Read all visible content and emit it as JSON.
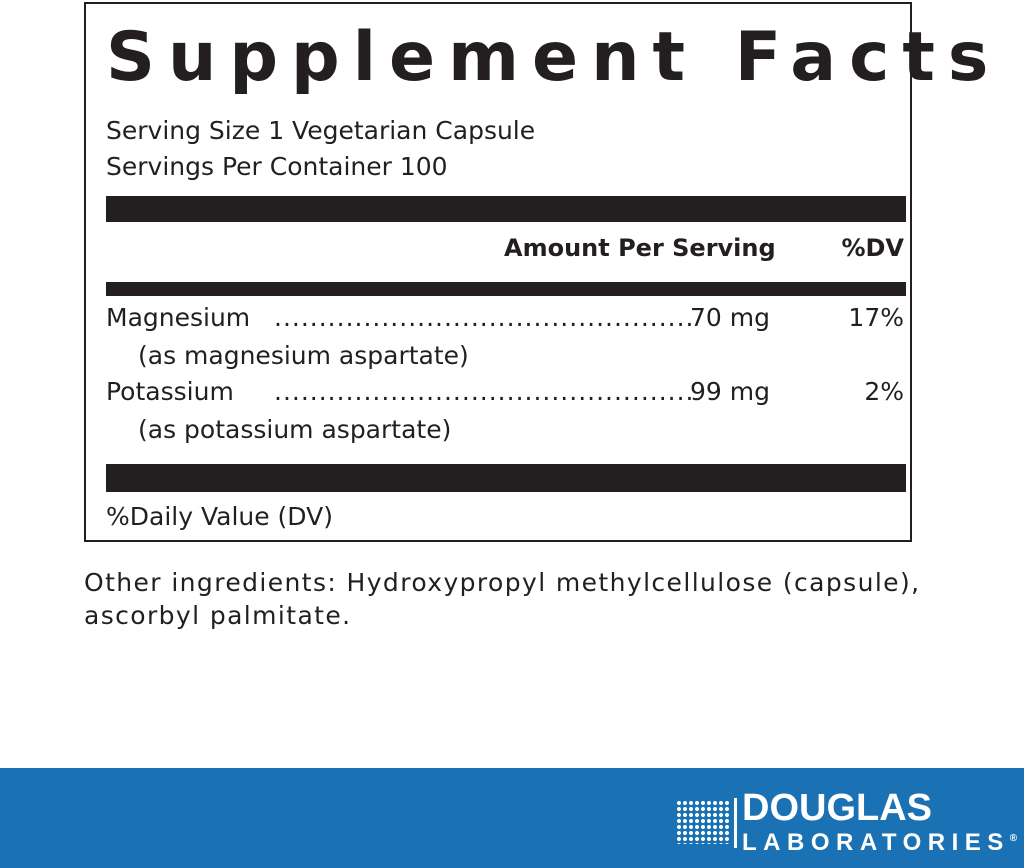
{
  "panel": {
    "title": "Supplement Facts",
    "serving_size": "Serving Size 1 Vegetarian Capsule",
    "servings_per_container": "Servings Per Container 100",
    "header": {
      "amount": "Amount Per Serving",
      "dv": "%DV"
    },
    "nutrients": [
      {
        "name": "Magnesium",
        "amount": "70 mg",
        "dv": "17%",
        "source": "(as magnesium aspartate)"
      },
      {
        "name": "Potassium",
        "amount": "99 mg",
        "dv": "2%",
        "source": "(as potassium aspartate)"
      }
    ],
    "footnote": "%Daily Value (DV)"
  },
  "other_ingredients": "Other ingredients: Hydroxypropyl methylcellulose (capsule), ascorbyl palmitate.",
  "footer": {
    "brand_top": "DOUGLAS",
    "brand_bottom": "LABORATORIES",
    "registered": "®",
    "color": "#1a72b5"
  }
}
